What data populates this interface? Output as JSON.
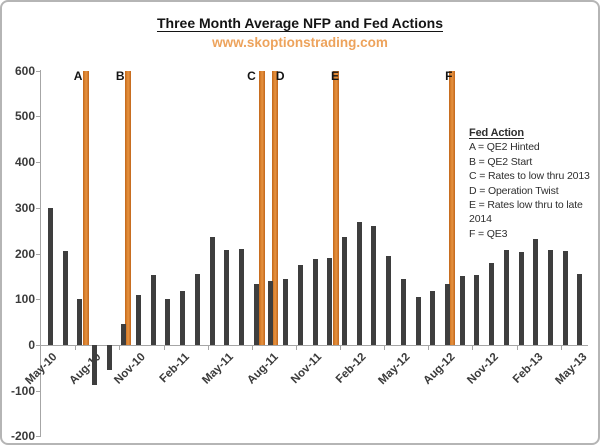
{
  "page": {
    "title": "Three Month Average NFP and Fed Actions",
    "subtitle": "www.skoptionstrading.com"
  },
  "colors": {
    "bar": "#3E3E3E",
    "fed_action_bar": "#CE7120",
    "subtitle_text": "#EDA35C",
    "axis": "#A6A6A6",
    "tick_text": "#3A3A3A"
  },
  "legend": {
    "title": "Fed Action",
    "lines": [
      "A = QE2 Hinted",
      "B = QE2 Start",
      "C = Rates to low thru 2013",
      "D = Operation Twist",
      "E = Rates low thru to late",
      "2014",
      "F = QE3"
    ]
  },
  "chart_data": {
    "type": "bar",
    "title": "Three Month Average NFP and Fed Actions",
    "subtitle": "www.skoptionstrading.com",
    "xlabel": "",
    "ylabel": "",
    "ylim": [
      -200,
      600
    ],
    "ytick_interval": 100,
    "grid": false,
    "legend_position": "right-inside",
    "xtick_label_every": 3,
    "categories": [
      "May-10",
      "Jun-10",
      "Jul-10",
      "Aug-10",
      "Sep-10",
      "Oct-10",
      "Nov-10",
      "Dec-10",
      "Jan-11",
      "Feb-11",
      "Mar-11",
      "Apr-11",
      "May-11",
      "Jun-11",
      "Jul-11",
      "Aug-11",
      "Sep-11",
      "Oct-11",
      "Nov-11",
      "Dec-11",
      "Jan-12",
      "Feb-12",
      "Mar-12",
      "Apr-12",
      "May-12",
      "Jun-12",
      "Jul-12",
      "Aug-12",
      "Sep-12",
      "Oct-12",
      "Nov-12",
      "Dec-12",
      "Jan-13",
      "Feb-13",
      "Mar-13",
      "Apr-13",
      "May-13"
    ],
    "values": [
      300,
      205,
      100,
      -88,
      -55,
      47,
      110,
      154,
      100,
      119,
      156,
      236,
      207,
      209,
      134,
      140,
      145,
      174,
      187,
      190,
      237,
      270,
      260,
      195,
      145,
      106,
      119,
      134,
      150,
      152,
      179,
      207,
      203,
      232,
      207,
      206,
      155
    ],
    "fed_actions": [
      {
        "letter": "A",
        "description": "QE2 Hinted",
        "x_slot": 3.41,
        "height_value": 600
      },
      {
        "letter": "B",
        "description": "QE2 Start",
        "x_slot": 6.27,
        "height_value": 600
      },
      {
        "letter": "C",
        "description": "Rates to low thru 2013",
        "x_slot": 15.4,
        "height_value": 600
      },
      {
        "letter": "D",
        "description": "Operation Twist",
        "x_slot": 16.27,
        "height_value": 600
      },
      {
        "letter": "E",
        "description": "Rates low thru to late 2014",
        "x_slot": 20.42,
        "height_value": 600
      },
      {
        "letter": "F",
        "description": "QE3",
        "x_slot": 28.32,
        "height_value": 600
      }
    ]
  }
}
